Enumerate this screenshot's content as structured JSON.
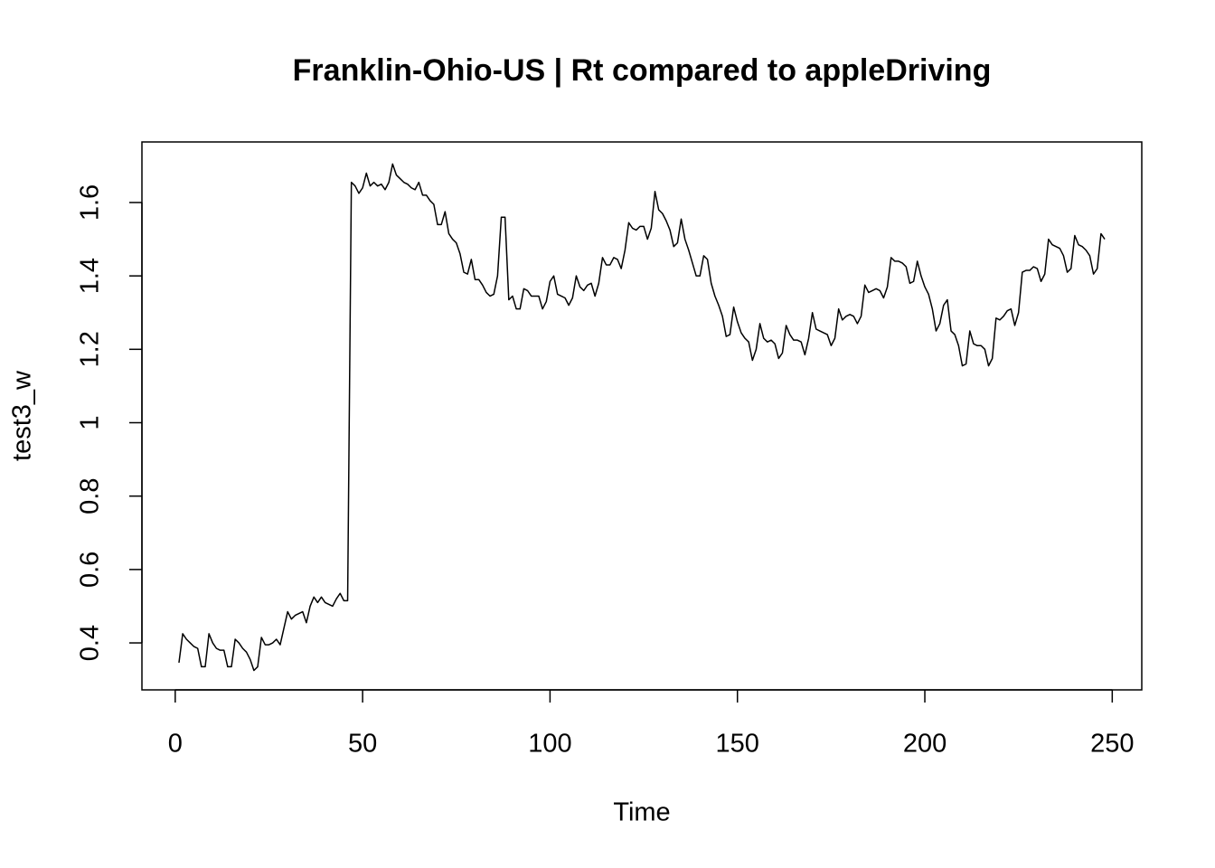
{
  "chart_data": {
    "type": "line",
    "title": "Franklin-Ohio-US | Rt compared to appleDriving",
    "x_label": "Time",
    "y_label": "test3_w",
    "color": "#000000",
    "xlim": [
      -8.88,
      257.88
    ],
    "ylim": [
      0.272,
      1.765
    ],
    "xticks": [
      0,
      50,
      100,
      150,
      200,
      250
    ],
    "yticks": [
      0.4,
      0.6,
      0.8,
      1.0,
      1.2,
      1.4,
      1.6
    ],
    "x": [
      1,
      2,
      3,
      4,
      5,
      6,
      7,
      8,
      9,
      10,
      11,
      12,
      13,
      14,
      15,
      16,
      17,
      18,
      19,
      20,
      21,
      22,
      23,
      24,
      25,
      26,
      27,
      28,
      29,
      30,
      31,
      32,
      33,
      34,
      35,
      36,
      37,
      38,
      39,
      40,
      41,
      42,
      43,
      44,
      45,
      46,
      47,
      48,
      49,
      50,
      51,
      52,
      53,
      54,
      55,
      56,
      57,
      58,
      59,
      60,
      61,
      62,
      63,
      64,
      65,
      66,
      67,
      68,
      69,
      70,
      71,
      72,
      73,
      74,
      75,
      76,
      77,
      78,
      79,
      80,
      81,
      82,
      83,
      84,
      85,
      86,
      87,
      88,
      89,
      90,
      91,
      92,
      93,
      94,
      95,
      96,
      97,
      98,
      99,
      100,
      101,
      102,
      103,
      104,
      105,
      106,
      107,
      108,
      109,
      110,
      111,
      112,
      113,
      114,
      115,
      116,
      117,
      118,
      119,
      120,
      121,
      122,
      123,
      124,
      125,
      126,
      127,
      128,
      129,
      130,
      131,
      132,
      133,
      134,
      135,
      136,
      137,
      138,
      139,
      140,
      141,
      142,
      143,
      144,
      145,
      146,
      147,
      148,
      149,
      150,
      151,
      152,
      153,
      154,
      155,
      156,
      157,
      158,
      159,
      160,
      161,
      162,
      163,
      164,
      165,
      166,
      167,
      168,
      169,
      170,
      171,
      172,
      173,
      174,
      175,
      176,
      177,
      178,
      179,
      180,
      181,
      182,
      183,
      184,
      185,
      186,
      187,
      188,
      189,
      190,
      191,
      192,
      193,
      194,
      195,
      196,
      197,
      198,
      199,
      200,
      201,
      202,
      203,
      204,
      205,
      206,
      207,
      208,
      209,
      210,
      211,
      212,
      213,
      214,
      215,
      216,
      217,
      218,
      219,
      220,
      221,
      222,
      223,
      224,
      225,
      226,
      227,
      228,
      229,
      230,
      231,
      232,
      233,
      234,
      235,
      236,
      237,
      238,
      239,
      240,
      241,
      242,
      243,
      244,
      245,
      246,
      247,
      248
    ],
    "values": [
      0.346,
      0.425,
      0.41,
      0.4,
      0.39,
      0.385,
      0.335,
      0.335,
      0.425,
      0.4,
      0.385,
      0.38,
      0.38,
      0.335,
      0.335,
      0.41,
      0.4,
      0.385,
      0.375,
      0.355,
      0.325,
      0.335,
      0.415,
      0.395,
      0.395,
      0.4,
      0.41,
      0.395,
      0.44,
      0.485,
      0.465,
      0.475,
      0.48,
      0.485,
      0.455,
      0.5,
      0.525,
      0.51,
      0.525,
      0.51,
      0.505,
      0.5,
      0.52,
      0.535,
      0.515,
      0.515,
      1.655,
      1.645,
      1.625,
      1.64,
      1.68,
      1.645,
      1.655,
      1.645,
      1.65,
      1.635,
      1.655,
      1.705,
      1.675,
      1.665,
      1.655,
      1.65,
      1.64,
      1.635,
      1.655,
      1.62,
      1.62,
      1.605,
      1.595,
      1.54,
      1.54,
      1.575,
      1.515,
      1.5,
      1.49,
      1.46,
      1.41,
      1.405,
      1.445,
      1.39,
      1.39,
      1.375,
      1.355,
      1.345,
      1.35,
      1.4,
      1.56,
      1.56,
      1.335,
      1.345,
      1.31,
      1.31,
      1.365,
      1.36,
      1.345,
      1.345,
      1.345,
      1.31,
      1.33,
      1.385,
      1.4,
      1.35,
      1.345,
      1.34,
      1.32,
      1.34,
      1.4,
      1.37,
      1.36,
      1.375,
      1.38,
      1.345,
      1.38,
      1.45,
      1.43,
      1.43,
      1.45,
      1.445,
      1.42,
      1.47,
      1.545,
      1.53,
      1.525,
      1.535,
      1.535,
      1.5,
      1.53,
      1.63,
      1.58,
      1.57,
      1.55,
      1.525,
      1.48,
      1.49,
      1.555,
      1.5,
      1.47,
      1.435,
      1.4,
      1.4,
      1.455,
      1.445,
      1.38,
      1.345,
      1.32,
      1.29,
      1.235,
      1.24,
      1.315,
      1.275,
      1.245,
      1.23,
      1.22,
      1.17,
      1.2,
      1.27,
      1.23,
      1.22,
      1.225,
      1.215,
      1.175,
      1.19,
      1.265,
      1.24,
      1.225,
      1.225,
      1.22,
      1.185,
      1.23,
      1.3,
      1.255,
      1.25,
      1.245,
      1.24,
      1.21,
      1.23,
      1.31,
      1.28,
      1.29,
      1.295,
      1.29,
      1.27,
      1.29,
      1.375,
      1.355,
      1.36,
      1.365,
      1.36,
      1.34,
      1.37,
      1.45,
      1.44,
      1.44,
      1.435,
      1.425,
      1.38,
      1.385,
      1.44,
      1.4,
      1.37,
      1.35,
      1.31,
      1.25,
      1.27,
      1.32,
      1.335,
      1.25,
      1.24,
      1.21,
      1.155,
      1.16,
      1.25,
      1.215,
      1.21,
      1.21,
      1.2,
      1.155,
      1.175,
      1.285,
      1.28,
      1.29,
      1.305,
      1.31,
      1.265,
      1.3,
      1.41,
      1.415,
      1.415,
      1.425,
      1.42,
      1.385,
      1.405,
      1.5,
      1.485,
      1.48,
      1.475,
      1.455,
      1.41,
      1.42,
      1.51,
      1.485,
      1.48,
      1.47,
      1.455,
      1.405,
      1.42,
      1.515,
      1.5
    ]
  }
}
